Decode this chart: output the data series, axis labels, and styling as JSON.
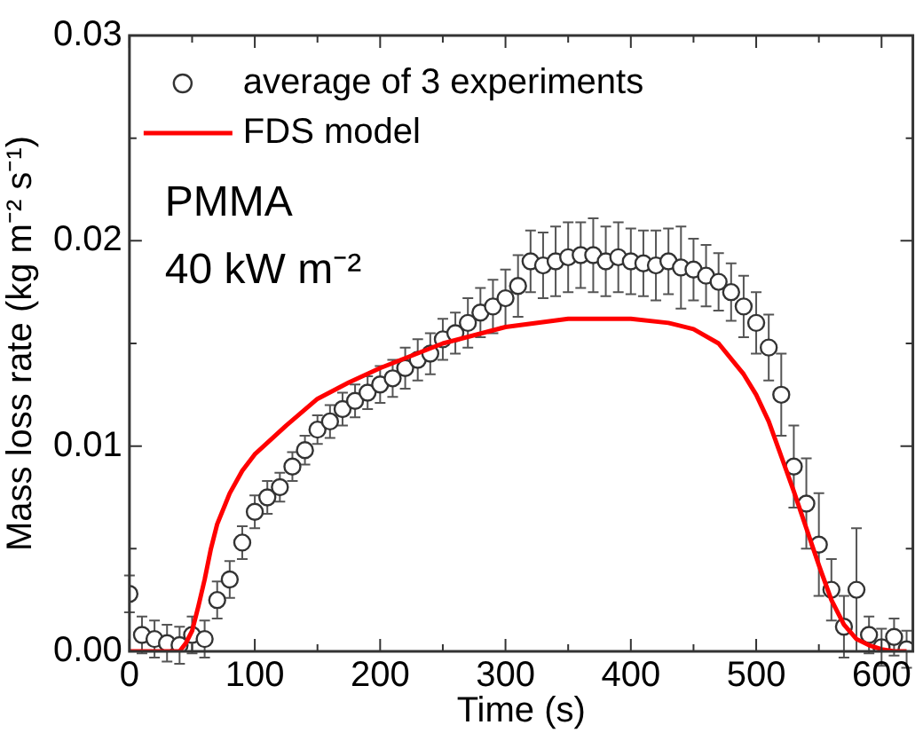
{
  "chart_data": {
    "type": "scatter",
    "xlabel": "Time (s)",
    "ylabel": "Mass loss rate (kg m⁻² s⁻¹)",
    "annotations": [
      "PMMA",
      "40 kW m⁻²"
    ],
    "xlim": [
      0,
      625
    ],
    "xticks": [
      0,
      {
        "value": 50,
        "label": null
      },
      100,
      {
        "value": 150,
        "label": null
      },
      200,
      {
        "value": 250,
        "label": null
      },
      300,
      {
        "value": 350,
        "label": null
      },
      400,
      {
        "value": 450,
        "label": null
      },
      500,
      {
        "value": 550,
        "label": null
      },
      600
    ],
    "ylim": [
      0,
      0.03
    ],
    "yticks": [
      {
        "value": 0,
        "label": "0.00"
      },
      {
        "value": 0.005,
        "label": null
      },
      {
        "value": 0.01,
        "label": "0.01"
      },
      {
        "value": 0.015,
        "label": null
      },
      {
        "value": 0.02,
        "label": "0.02"
      },
      {
        "value": 0.025,
        "label": null
      },
      {
        "value": 0.03,
        "label": "0.03"
      }
    ],
    "grid": false,
    "legend": "top left",
    "series": [
      {
        "name": "average of 3 experiments",
        "type": "scatter",
        "marker": "circle",
        "color": "#333333",
        "x": [
          0,
          10,
          20,
          30,
          40,
          50,
          60,
          70,
          80,
          90,
          100,
          110,
          120,
          130,
          140,
          150,
          160,
          170,
          180,
          190,
          200,
          210,
          220,
          230,
          240,
          250,
          260,
          270,
          280,
          290,
          300,
          310,
          320,
          330,
          340,
          350,
          360,
          370,
          380,
          390,
          400,
          410,
          420,
          430,
          440,
          450,
          460,
          470,
          480,
          490,
          500,
          510,
          520,
          530,
          540,
          550,
          560,
          570,
          580,
          590,
          600,
          610,
          620
        ],
        "values": [
          0.0028,
          0.0008,
          0.0006,
          0.0004,
          0.0003,
          0.0008,
          0.0006,
          0.0025,
          0.0035,
          0.0053,
          0.0068,
          0.0075,
          0.008,
          0.009,
          0.0098,
          0.0108,
          0.0112,
          0.0118,
          0.0122,
          0.0126,
          0.013,
          0.0133,
          0.0138,
          0.0142,
          0.0145,
          0.0152,
          0.0155,
          0.016,
          0.0165,
          0.0168,
          0.0172,
          0.0178,
          0.019,
          0.0188,
          0.019,
          0.0192,
          0.0193,
          0.0193,
          0.019,
          0.0192,
          0.019,
          0.0189,
          0.0188,
          0.019,
          0.0187,
          0.0186,
          0.0183,
          0.018,
          0.0175,
          0.0168,
          0.016,
          0.0148,
          0.0125,
          0.009,
          0.0072,
          0.0052,
          0.003,
          0.0012,
          0.003,
          0.0008,
          0.0002,
          0.0007,
          0.0001
        ],
        "errors": [
          0.0009,
          0.0009,
          0.0009,
          0.0009,
          0.0009,
          0.0009,
          0.0009,
          0.0009,
          0.0009,
          0.0008,
          0.0008,
          0.0008,
          0.0007,
          0.0007,
          0.0007,
          0.0007,
          0.0008,
          0.0008,
          0.0008,
          0.0008,
          0.0009,
          0.0009,
          0.001,
          0.001,
          0.001,
          0.001,
          0.001,
          0.0012,
          0.0012,
          0.0013,
          0.0014,
          0.0015,
          0.0015,
          0.0016,
          0.0017,
          0.0017,
          0.0016,
          0.0018,
          0.0017,
          0.0017,
          0.0016,
          0.0016,
          0.0017,
          0.0016,
          0.002,
          0.0015,
          0.0015,
          0.0014,
          0.0014,
          0.0015,
          0.0015,
          0.0016,
          0.002,
          0.002,
          0.0022,
          0.0025,
          0.0015,
          0.0015,
          0.003,
          0.0009,
          0.0009,
          0.0009,
          0.0009
        ]
      },
      {
        "name": "FDS model",
        "type": "line",
        "marker": "none",
        "line_style": "solid",
        "color": "#ff0000",
        "x": [
          0,
          40,
          45,
          50,
          55,
          60,
          65,
          70,
          80,
          90,
          100,
          125,
          150,
          175,
          200,
          250,
          300,
          350,
          400,
          430,
          450,
          470,
          490,
          500,
          510,
          520,
          530,
          540,
          550,
          560,
          570,
          580,
          590,
          600,
          610,
          620
        ],
        "values": [
          0,
          0,
          0.0004,
          0.001,
          0.0022,
          0.0035,
          0.005,
          0.0062,
          0.0077,
          0.0088,
          0.0096,
          0.011,
          0.0123,
          0.0131,
          0.0138,
          0.015,
          0.0158,
          0.0162,
          0.0162,
          0.016,
          0.0157,
          0.015,
          0.0135,
          0.0125,
          0.0112,
          0.0095,
          0.0078,
          0.006,
          0.0042,
          0.0025,
          0.0013,
          0.0006,
          0.0003,
          0.0001,
          0,
          0
        ]
      }
    ]
  }
}
